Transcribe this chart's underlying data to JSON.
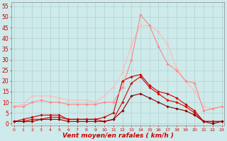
{
  "x": [
    0,
    1,
    2,
    3,
    4,
    5,
    6,
    7,
    8,
    9,
    10,
    11,
    12,
    13,
    14,
    15,
    16,
    17,
    18,
    19,
    20,
    21,
    22,
    23
  ],
  "series": [
    {
      "color": "#dd0000",
      "linewidth": 0.8,
      "marker": "D",
      "markersize": 1.8,
      "y": [
        1,
        1,
        2,
        2,
        3,
        3,
        2,
        2,
        2,
        2,
        1,
        2,
        10,
        19,
        22,
        17,
        14,
        11,
        10,
        8,
        5,
        1,
        1,
        1
      ]
    },
    {
      "color": "#cc0000",
      "linewidth": 0.8,
      "marker": "D",
      "markersize": 1.8,
      "y": [
        1,
        2,
        3,
        4,
        4,
        4,
        2,
        2,
        2,
        2,
        3,
        5,
        20,
        22,
        23,
        18,
        15,
        14,
        12,
        9,
        6,
        1,
        1,
        1
      ]
    },
    {
      "color": "#880000",
      "linewidth": 0.8,
      "marker": "D",
      "markersize": 1.8,
      "y": [
        1,
        1,
        1,
        2,
        2,
        2,
        1,
        1,
        1,
        1,
        1,
        2,
        6,
        13,
        14,
        12,
        10,
        8,
        7,
        6,
        4,
        1,
        0,
        1
      ]
    },
    {
      "color": "#ffbbbb",
      "linewidth": 0.8,
      "marker": "D",
      "markersize": 1.8,
      "y": [
        8,
        9,
        13,
        13,
        13,
        12,
        11,
        11,
        11,
        10,
        13,
        17,
        24,
        37,
        46,
        46,
        43,
        37,
        26,
        20,
        15,
        8,
        7,
        8
      ]
    },
    {
      "color": "#ff8888",
      "linewidth": 0.8,
      "marker": "D",
      "markersize": 1.8,
      "y": [
        8,
        8,
        10,
        11,
        10,
        10,
        9,
        9,
        9,
        9,
        10,
        10,
        17,
        30,
        51,
        46,
        36,
        28,
        25,
        20,
        19,
        6,
        7,
        8
      ]
    }
  ],
  "xlabel": "Vent moyen/en rafales ( km/h )",
  "ylabel_ticks": [
    0,
    5,
    10,
    15,
    20,
    25,
    30,
    35,
    40,
    45,
    50,
    55
  ],
  "xticks": [
    0,
    1,
    2,
    3,
    4,
    5,
    6,
    7,
    8,
    9,
    10,
    11,
    12,
    13,
    14,
    15,
    16,
    17,
    18,
    19,
    20,
    21,
    22,
    23
  ],
  "xlim": [
    -0.3,
    23.3
  ],
  "ylim": [
    -1,
    57
  ],
  "bg_color": "#ceeaea",
  "grid_color": "#aacccc",
  "xlabel_color": "#cc0000",
  "tick_color": "#cc0000",
  "axis_color": "#888888"
}
